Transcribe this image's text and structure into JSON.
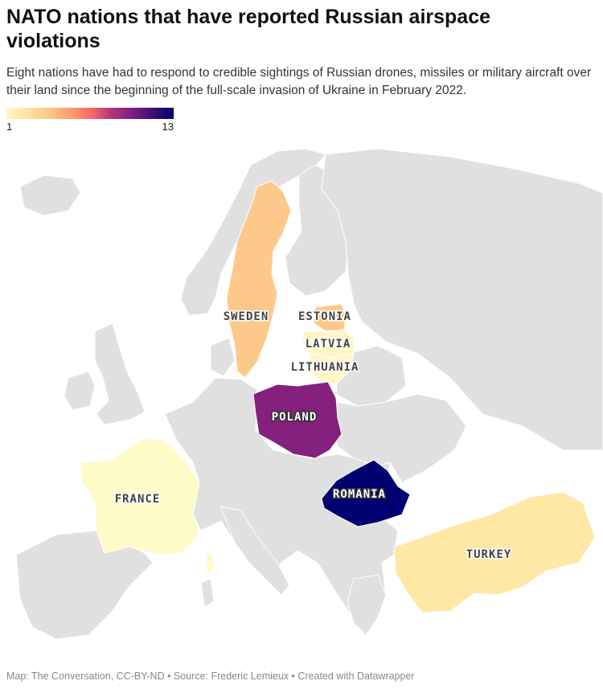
{
  "title": "NATO nations that have reported Russian airspace violations",
  "subtitle": "Eight nations have had to respond to credible sightings of Russian drones, missiles or military aircraft over their land since the beginning of the full-scale invasion of Ukraine in February 2022.",
  "legend": {
    "min": "1",
    "max": "13"
  },
  "colors": {
    "background_land": "#e0e0e0",
    "scale_low": "#fff8c4",
    "scale_high": "#000070"
  },
  "countries": [
    {
      "name": "SWEDEN",
      "color": "#fdc98a"
    },
    {
      "name": "ESTONIA",
      "color": "#fdc98a"
    },
    {
      "name": "LATVIA",
      "color": "#fff6c6"
    },
    {
      "name": "LITHUANIA",
      "color": "#fff6c6"
    },
    {
      "name": "POLAND",
      "color": "#84207e"
    },
    {
      "name": "ROMANIA",
      "color": "#000070"
    },
    {
      "name": "FRANCE",
      "color": "#fffbc8"
    },
    {
      "name": "TURKEY",
      "color": "#ffe7a6"
    }
  ],
  "footer": "Map: The Conversation, CC-BY-ND • Source: Frederic Lemieux • Created with Datawrapper"
}
